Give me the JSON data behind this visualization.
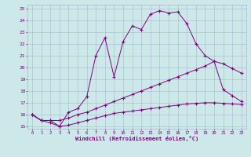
{
  "xlabel": "Windchill (Refroidissement éolien,°C)",
  "bg_color": "#cce8e8",
  "line_color": "#800080",
  "grid_color": "#aab8cc",
  "xlim": [
    -0.5,
    23.5
  ],
  "ylim": [
    14.8,
    25.3
  ],
  "xticks": [
    0,
    1,
    2,
    3,
    4,
    5,
    6,
    7,
    8,
    9,
    10,
    11,
    12,
    13,
    14,
    15,
    16,
    17,
    18,
    19,
    20,
    21,
    22,
    23
  ],
  "yticks": [
    15,
    16,
    17,
    18,
    19,
    20,
    21,
    22,
    23,
    24,
    25
  ],
  "line1_x": [
    0,
    1,
    2,
    3,
    4,
    5,
    6,
    7,
    8,
    9,
    10,
    11,
    12,
    13,
    14,
    15,
    16,
    17,
    18,
    19,
    20,
    21,
    22,
    23
  ],
  "line1_y": [
    16.0,
    15.5,
    15.5,
    15.0,
    16.2,
    16.5,
    17.5,
    21.0,
    22.5,
    19.2,
    22.2,
    23.5,
    23.2,
    24.5,
    24.8,
    24.6,
    24.7,
    23.7,
    22.0,
    21.0,
    20.5,
    18.1,
    17.6,
    17.1
  ],
  "line2_x": [
    0,
    1,
    2,
    3,
    4,
    5,
    6,
    7,
    8,
    9,
    10,
    11,
    12,
    13,
    14,
    15,
    16,
    17,
    18,
    19,
    20,
    21,
    22,
    23
  ],
  "line2_y": [
    16.0,
    15.5,
    15.5,
    15.5,
    15.7,
    16.0,
    16.2,
    16.5,
    16.8,
    17.1,
    17.4,
    17.7,
    18.0,
    18.3,
    18.6,
    18.9,
    19.2,
    19.5,
    19.8,
    20.1,
    20.5,
    20.3,
    19.9,
    19.5
  ],
  "line3_x": [
    0,
    1,
    2,
    3,
    4,
    5,
    6,
    7,
    8,
    9,
    10,
    11,
    12,
    13,
    14,
    15,
    16,
    17,
    18,
    19,
    20,
    21,
    22,
    23
  ],
  "line3_y": [
    16.0,
    15.5,
    15.3,
    15.0,
    15.1,
    15.3,
    15.5,
    15.7,
    15.9,
    16.1,
    16.2,
    16.3,
    16.4,
    16.5,
    16.6,
    16.7,
    16.8,
    16.9,
    16.95,
    17.0,
    17.0,
    16.95,
    16.9,
    16.85
  ]
}
